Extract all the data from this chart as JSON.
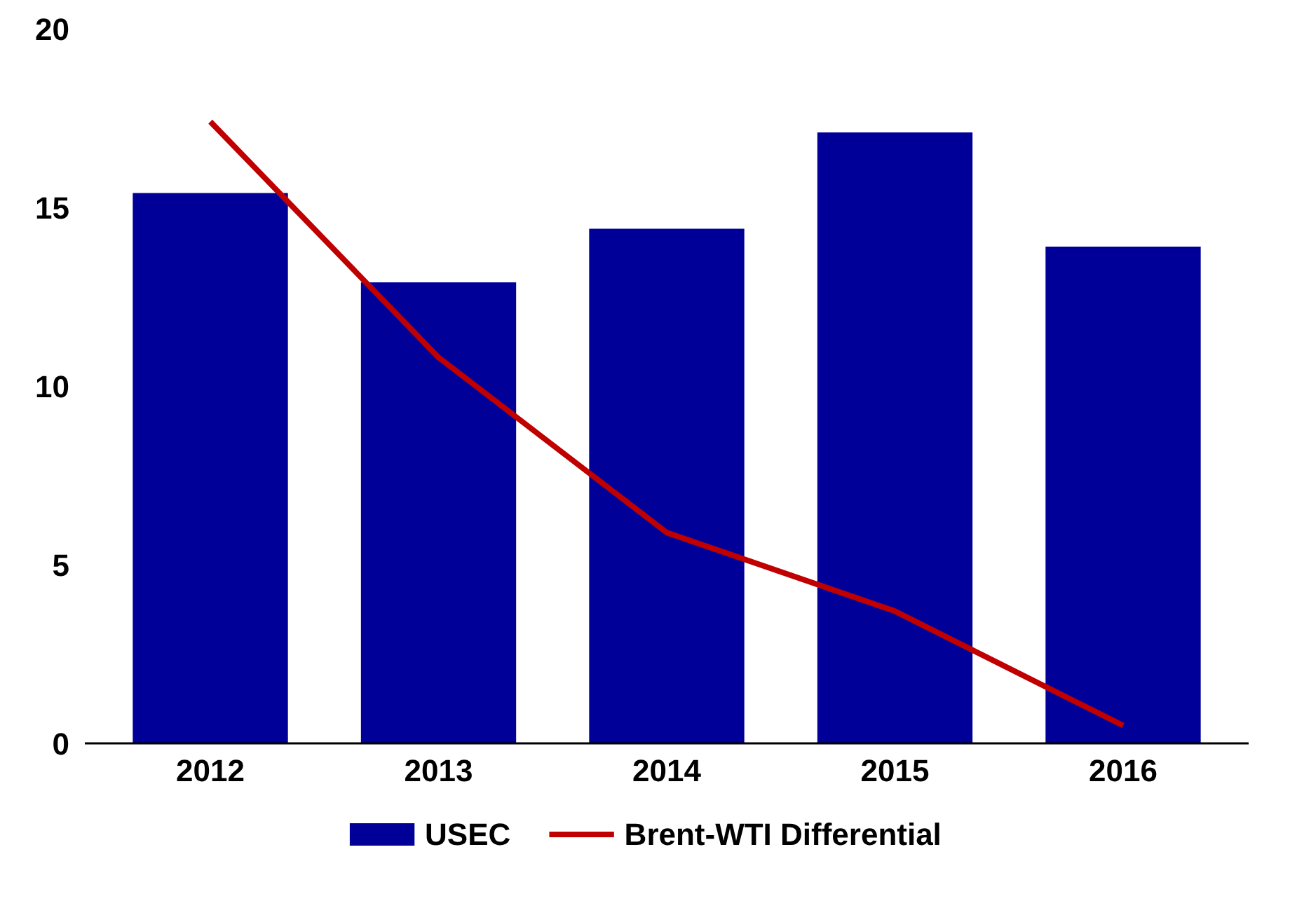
{
  "chart_data": {
    "type": "bar",
    "categories": [
      "2012",
      "2013",
      "2014",
      "2015",
      "2016"
    ],
    "series": [
      {
        "name": "USEC",
        "color": "#000099",
        "values": [
          15.4,
          12.9,
          14.4,
          17.1,
          13.9
        ]
      },
      {
        "name": "Brent-WTI Differential",
        "type": "line",
        "color": "#c00000",
        "values": [
          17.4,
          10.8,
          5.9,
          3.7,
          0.5
        ]
      }
    ],
    "ylim": [
      0,
      20
    ],
    "yticks": [
      0,
      5,
      10,
      15,
      20
    ],
    "grid": false,
    "legend": "bottom",
    "marker": "none",
    "line_style": "solid"
  }
}
